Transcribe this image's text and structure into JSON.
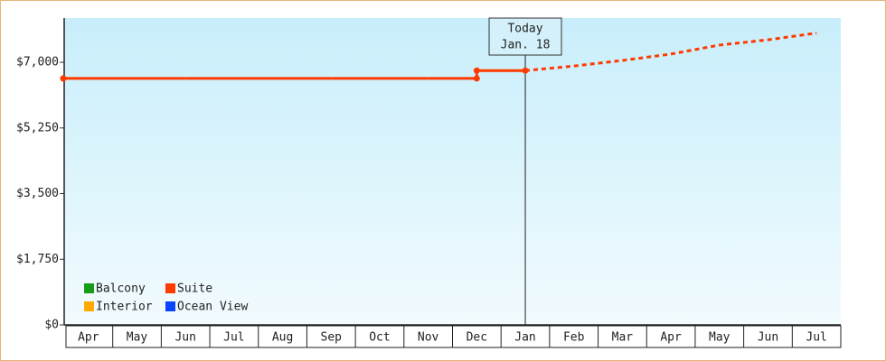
{
  "chart_data": {
    "type": "line",
    "categories": [
      "Apr",
      "May",
      "Jun",
      "Jul",
      "Aug",
      "Sep",
      "Oct",
      "Nov",
      "Dec",
      "Jan",
      "Feb",
      "Mar",
      "Apr",
      "May",
      "Jun",
      "Jul"
    ],
    "series": [
      {
        "name": "Balcony",
        "color": "#169c16",
        "values": [
          null,
          null,
          null,
          null,
          null,
          null,
          null,
          null,
          null,
          null,
          null,
          null,
          null,
          null,
          null,
          null
        ]
      },
      {
        "name": "Suite",
        "color": "#ff3a00",
        "values": [
          6570,
          6570,
          6570,
          6570,
          6570,
          6570,
          6570,
          6570,
          6570,
          6780,
          null,
          null,
          null,
          null,
          null,
          null
        ],
        "forecast": [
          null,
          null,
          null,
          null,
          null,
          null,
          null,
          null,
          null,
          6780,
          6900,
          7050,
          7220,
          7460,
          7600,
          7780
        ]
      },
      {
        "name": "Interior",
        "color": "#ffaa00",
        "values": [
          null,
          null,
          null,
          null,
          null,
          null,
          null,
          null,
          null,
          null,
          null,
          null,
          null,
          null,
          null,
          null
        ]
      },
      {
        "name": "Ocean View",
        "color": "#0a44ff",
        "values": [
          null,
          null,
          null,
          null,
          null,
          null,
          null,
          null,
          null,
          null,
          null,
          null,
          null,
          null,
          null,
          null
        ]
      }
    ],
    "ylim": [
      0,
      8180
    ],
    "yticks": [
      {
        "value": 0,
        "label": "$0"
      },
      {
        "value": 1750,
        "label": "$1,750"
      },
      {
        "value": 3500,
        "label": "$3,500"
      },
      {
        "value": 5250,
        "label": "$5,250"
      },
      {
        "value": 7000,
        "label": "$7,000"
      }
    ],
    "annotation": {
      "label": "Today",
      "date": "Jan. 18"
    },
    "legend": "bottom-left"
  }
}
